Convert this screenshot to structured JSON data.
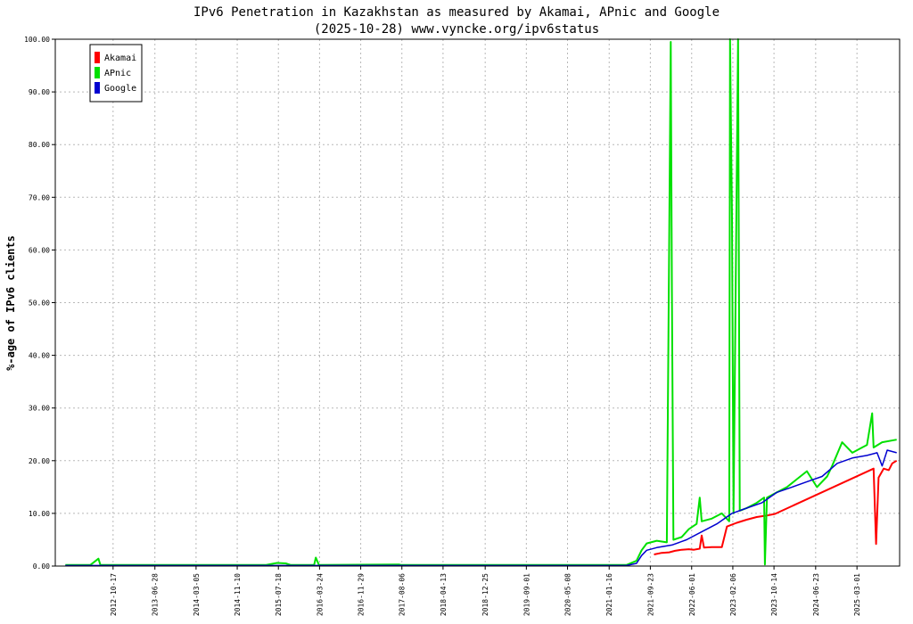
{
  "chart_data": {
    "type": "line",
    "title": "IPv6 Penetration in Kazakhstan as measured by Akamai, APnic and Google",
    "subtitle": "(2025-10-28) www.vyncke.org/ipv6status",
    "ylabel": "%-age of IPv6 clients",
    "ylim": [
      0,
      100
    ],
    "xlim": [
      "2011-11-01",
      "2025-11-15"
    ],
    "grid": true,
    "legend_position": "top-left",
    "yticks": [
      "0.00",
      "10.00",
      "20.00",
      "30.00",
      "40.00",
      "50.00",
      "60.00",
      "70.00",
      "80.00",
      "90.00",
      "100.00"
    ],
    "xticks": [
      "2012-10-17",
      "2013-06-28",
      "2014-03-05",
      "2014-11-10",
      "2015-07-18",
      "2016-03-24",
      "2016-11-29",
      "2017-08-06",
      "2018-04-13",
      "2018-12-25",
      "2019-09-01",
      "2020-05-08",
      "2021-01-16",
      "2021-09-23",
      "2022-06-01",
      "2023-02-06",
      "2023-10-14",
      "2024-06-23",
      "2025-03-01"
    ],
    "series": [
      {
        "name": "Akamai",
        "color": "#ff0000",
        "points": [
          [
            "2021-10-15",
            2.2
          ],
          [
            "2021-12-01",
            2.5
          ],
          [
            "2022-01-15",
            2.6
          ],
          [
            "2022-02-20",
            2.9
          ],
          [
            "2022-04-01",
            3.1
          ],
          [
            "2022-05-15",
            3.2
          ],
          [
            "2022-06-15",
            3.1
          ],
          [
            "2022-07-20",
            3.3
          ],
          [
            "2022-08-01",
            5.8
          ],
          [
            "2022-08-15",
            3.5
          ],
          [
            "2022-10-01",
            3.6
          ],
          [
            "2022-12-01",
            3.6
          ],
          [
            "2023-01-01",
            7.5
          ],
          [
            "2023-03-01",
            8.2
          ],
          [
            "2023-05-01",
            8.8
          ],
          [
            "2023-07-01",
            9.3
          ],
          [
            "2023-09-01",
            9.6
          ],
          [
            "2023-10-20",
            9.9
          ],
          [
            "2025-06-10",
            18.5
          ],
          [
            "2025-06-25",
            4.2
          ],
          [
            "2025-07-10",
            16.8
          ],
          [
            "2025-08-10",
            18.5
          ],
          [
            "2025-09-10",
            18.2
          ],
          [
            "2025-10-01",
            19.5
          ],
          [
            "2025-10-28",
            20.0
          ]
        ]
      },
      {
        "name": "APnic",
        "color": "#00e000",
        "points": [
          [
            "2012-01-01",
            0.2
          ],
          [
            "2012-06-01",
            0.2
          ],
          [
            "2012-07-20",
            1.4
          ],
          [
            "2012-08-01",
            0.2
          ],
          [
            "2015-05-01",
            0.2
          ],
          [
            "2015-07-10",
            0.6
          ],
          [
            "2015-09-01",
            0.5
          ],
          [
            "2015-10-01",
            0.2
          ],
          [
            "2016-02-20",
            0.2
          ],
          [
            "2016-03-01",
            1.6
          ],
          [
            "2016-03-20",
            0.2
          ],
          [
            "2017-07-20",
            0.3
          ],
          [
            "2017-08-01",
            0.2
          ],
          [
            "2021-05-01",
            0.2
          ],
          [
            "2021-07-01",
            1.0
          ],
          [
            "2021-08-01",
            3.0
          ],
          [
            "2021-09-01",
            4.3
          ],
          [
            "2021-11-01",
            4.8
          ],
          [
            "2022-01-01",
            4.5
          ],
          [
            "2022-01-25",
            99.5
          ],
          [
            "2022-02-01",
            52.0
          ],
          [
            "2022-02-10",
            5.0
          ],
          [
            "2022-04-01",
            5.5
          ],
          [
            "2022-05-15",
            7.0
          ],
          [
            "2022-07-01",
            8.0
          ],
          [
            "2022-07-20",
            13.0
          ],
          [
            "2022-08-01",
            8.5
          ],
          [
            "2022-10-01",
            9.0
          ],
          [
            "2022-12-01",
            10.0
          ],
          [
            "2023-01-15",
            8.5
          ],
          [
            "2023-01-20",
            100
          ],
          [
            "2023-02-01",
            66.0
          ],
          [
            "2023-02-10",
            10.0
          ],
          [
            "2023-03-10",
            100
          ],
          [
            "2023-03-20",
            10.5
          ],
          [
            "2023-05-01",
            11.0
          ],
          [
            "2023-07-01",
            12.0
          ],
          [
            "2023-08-15",
            13.0
          ],
          [
            "2023-08-20",
            0.3
          ],
          [
            "2023-09-01",
            13.0
          ],
          [
            "2023-11-01",
            14.0
          ],
          [
            "2024-01-01",
            15.0
          ],
          [
            "2024-03-01",
            16.5
          ],
          [
            "2024-05-01",
            18.0
          ],
          [
            "2024-07-01",
            15.0
          ],
          [
            "2024-09-01",
            17.0
          ],
          [
            "2024-10-01",
            19.0
          ],
          [
            "2024-12-01",
            23.5
          ],
          [
            "2025-02-01",
            21.5
          ],
          [
            "2025-04-01",
            22.5
          ],
          [
            "2025-05-01",
            23.0
          ],
          [
            "2025-06-01",
            29.0
          ],
          [
            "2025-06-10",
            22.5
          ],
          [
            "2025-08-01",
            23.5
          ],
          [
            "2025-10-28",
            24.0
          ]
        ]
      },
      {
        "name": "Google",
        "color": "#0000d0",
        "points": [
          [
            "2012-01-01",
            0.1
          ],
          [
            "2021-05-01",
            0.1
          ],
          [
            "2021-07-01",
            0.5
          ],
          [
            "2021-08-01",
            2.0
          ],
          [
            "2021-09-01",
            3.0
          ],
          [
            "2021-11-01",
            3.5
          ],
          [
            "2022-02-01",
            4.0
          ],
          [
            "2022-05-01",
            5.0
          ],
          [
            "2022-08-01",
            6.5
          ],
          [
            "2022-11-01",
            8.0
          ],
          [
            "2023-02-01",
            10.0
          ],
          [
            "2023-05-01",
            11.0
          ],
          [
            "2023-08-01",
            12.0
          ],
          [
            "2023-11-01",
            14.0
          ],
          [
            "2024-02-01",
            15.0
          ],
          [
            "2024-05-01",
            16.0
          ],
          [
            "2024-08-01",
            17.0
          ],
          [
            "2024-11-01",
            19.5
          ],
          [
            "2025-02-01",
            20.5
          ],
          [
            "2025-05-01",
            21.0
          ],
          [
            "2025-07-01",
            21.5
          ],
          [
            "2025-08-01",
            19.0
          ],
          [
            "2025-09-01",
            22.0
          ],
          [
            "2025-10-28",
            21.5
          ]
        ]
      }
    ]
  }
}
